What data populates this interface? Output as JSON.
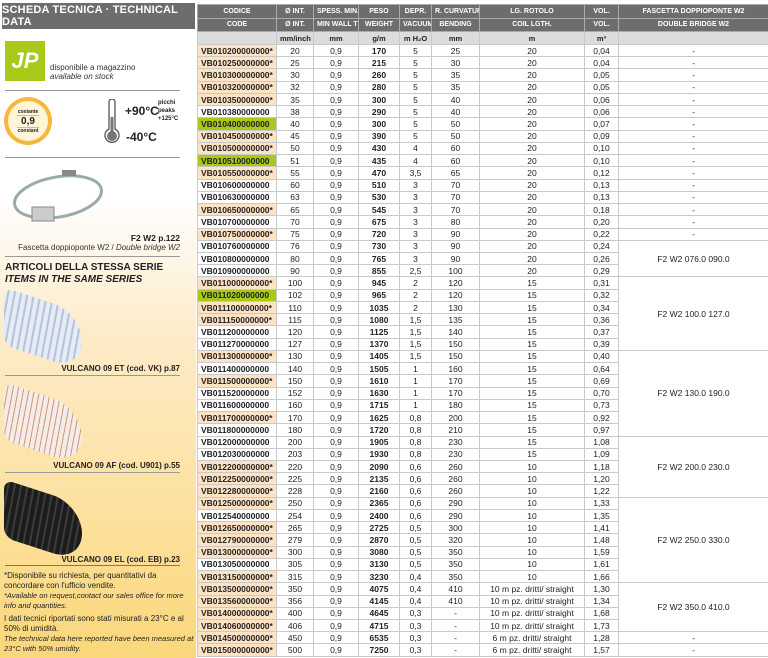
{
  "left": {
    "title": "SCHEDA TECNICA · TECHNICAL DATA",
    "stock_logo": "JP",
    "stock_it": "disponibile a magazzino",
    "stock_en": "available on stock",
    "badge_top": "costante",
    "badge_value": "0,9",
    "badge_bottom": "constant",
    "temp_max": "+90°C",
    "temp_min": "-40°C",
    "peaks_it": "picchi",
    "peaks_en": "peaks",
    "peaks_value": "+125°C",
    "clamp_ref": "F2 W2 p.122",
    "clamp_it": "Fascetta doppioponte W2 / ",
    "clamp_en": "Double bridge W2",
    "series_it": "ARTICOLI DELLA STESSA SERIE",
    "series_en": "ITEMS IN THE SAME SERIES",
    "items": [
      {
        "label": "VULCANO 09 ET (cod. VK) p.87",
        "color": "#dfe6f2"
      },
      {
        "label": "VULCANO 09 AF (cod. U901) p.55",
        "color": "#f0e6e0"
      },
      {
        "label": "VULCANO 09 EL (cod. EB) p.23",
        "color": "#1c1c1c"
      }
    ],
    "note1_it": "*Disponibile su richiesta, per quantitativi da concordare con l'ufficio vendite.",
    "note1_en": "*Available on request,contact our sales office for more info and quantities.",
    "note2_it": "I dati tecnici riportati sono stati misurati a 23°C e al 50% di umidità.",
    "note2_en": "The technical data here reported have been measured at 23°C with 50% umidity."
  },
  "colors": {
    "stock": "#a8c81a",
    "request": "#fde2c4",
    "header": "#6d6d6d"
  },
  "table": {
    "head_it": [
      "CODICE",
      "Ø INT.",
      "SPESS. MIN.",
      "PESO",
      "DEPR.",
      "R. CURVATURA",
      "LG. ROTOLO",
      "VOL.",
      "FASCETTA DOPPIOPONTE W2"
    ],
    "head_en": [
      "CODE",
      "Ø INT.",
      "MIN WALL TH.",
      "WEIGHT",
      "VACUUM",
      "BENDING",
      "COIL LGTH.",
      "VOL.",
      "DOUBLE BRIDGE W2"
    ],
    "units": [
      "",
      "mm/inch",
      "mm",
      "g/m",
      "m H₂O",
      "mm",
      "m",
      "m³",
      ""
    ],
    "rows": [
      [
        "VB010200000000*",
        "20",
        "0,9",
        "170",
        "5",
        "25",
        "20",
        "0,04",
        "-",
        "request"
      ],
      [
        "VB010250000000*",
        "25",
        "0,9",
        "215",
        "5",
        "30",
        "20",
        "0,04",
        "-",
        "request"
      ],
      [
        "VB010300000000*",
        "30",
        "0,9",
        "260",
        "5",
        "35",
        "20",
        "0,05",
        "-",
        "request"
      ],
      [
        "VB010320000000*",
        "32",
        "0,9",
        "280",
        "5",
        "35",
        "20",
        "0,05",
        "-",
        "request"
      ],
      [
        "VB010350000000*",
        "35",
        "0,9",
        "300",
        "5",
        "40",
        "20",
        "0,06",
        "-",
        "request"
      ],
      [
        "VB010380000000",
        "38",
        "0,9",
        "290",
        "5",
        "40",
        "20",
        "0,06",
        "-",
        ""
      ],
      [
        "VB010400000000",
        "40",
        "0,9",
        "300",
        "5",
        "50",
        "20",
        "0,07",
        "-",
        "stock"
      ],
      [
        "VB010450000000*",
        "45",
        "0,9",
        "390",
        "5",
        "50",
        "20",
        "0,09",
        "-",
        "request"
      ],
      [
        "VB010500000000*",
        "50",
        "0,9",
        "430",
        "4",
        "60",
        "20",
        "0,10",
        "-",
        "request"
      ],
      [
        "VB010510000000",
        "51",
        "0,9",
        "435",
        "4",
        "60",
        "20",
        "0,10",
        "-",
        "stock"
      ],
      [
        "VB010550000000*",
        "55",
        "0,9",
        "470",
        "3,5",
        "65",
        "20",
        "0,12",
        "-",
        "request"
      ],
      [
        "VB010600000000",
        "60",
        "0,9",
        "510",
        "3",
        "70",
        "20",
        "0,13",
        "-",
        ""
      ],
      [
        "VB010630000000",
        "63",
        "0,9",
        "530",
        "3",
        "70",
        "20",
        "0,13",
        "-",
        ""
      ],
      [
        "VB010650000000*",
        "65",
        "0,9",
        "545",
        "3",
        "70",
        "20",
        "0,18",
        "-",
        "request"
      ],
      [
        "VB010700000000",
        "70",
        "0,9",
        "675",
        "3",
        "80",
        "20",
        "0,20",
        "-",
        ""
      ],
      [
        "VB010750000000*",
        "75",
        "0,9",
        "720",
        "3",
        "90",
        "20",
        "0,22",
        "-",
        "request"
      ],
      [
        "VB010760000000",
        "76",
        "0,9",
        "730",
        "3",
        "90",
        "20",
        "0,24",
        "F2 W2 076.0 090.0",
        ""
      ],
      [
        "VB010800000000",
        "80",
        "0,9",
        "765",
        "3",
        "90",
        "20",
        "0,26",
        "F2 W2 076.0 090.0",
        ""
      ],
      [
        "VB010900000000",
        "90",
        "0,9",
        "855",
        "2,5",
        "100",
        "20",
        "0,29",
        "F2 W2 076.0 090.0",
        ""
      ],
      [
        "VB011000000000*",
        "100",
        "0,9",
        "945",
        "2",
        "120",
        "15",
        "0,31",
        "F2 W2 100.0 127.0",
        "request"
      ],
      [
        "VB011020000000",
        "102",
        "0,9",
        "965",
        "2",
        "120",
        "15",
        "0,32",
        "F2 W2 100.0 127.0",
        "stock"
      ],
      [
        "VB011100000000*",
        "110",
        "0,9",
        "1035",
        "2",
        "130",
        "15",
        "0,34",
        "F2 W2 100.0 127.0",
        "request"
      ],
      [
        "VB011150000000*",
        "115",
        "0,9",
        "1080",
        "1,5",
        "135",
        "15",
        "0,36",
        "F2 W2 100.0 127.0",
        "request"
      ],
      [
        "VB011200000000",
        "120",
        "0,9",
        "1125",
        "1,5",
        "140",
        "15",
        "0,37",
        "F2 W2 100.0 127.0",
        ""
      ],
      [
        "VB011270000000",
        "127",
        "0,9",
        "1370",
        "1,5",
        "150",
        "15",
        "0,39",
        "F2 W2 100.0 127.0",
        ""
      ],
      [
        "VB011300000000*",
        "130",
        "0,9",
        "1405",
        "1,5",
        "150",
        "15",
        "0,40",
        "F2 W2 130.0 190.0",
        "request"
      ],
      [
        "VB011400000000",
        "140",
        "0,9",
        "1505",
        "1",
        "160",
        "15",
        "0,64",
        "F2 W2 130.0 190.0",
        ""
      ],
      [
        "VB011500000000*",
        "150",
        "0,9",
        "1610",
        "1",
        "170",
        "15",
        "0,69",
        "F2 W2 130.0 190.0",
        "request"
      ],
      [
        "VB011520000000",
        "152",
        "0,9",
        "1630",
        "1",
        "170",
        "15",
        "0,70",
        "F2 W2 130.0 190.0",
        ""
      ],
      [
        "VB011600000000",
        "160",
        "0,9",
        "1715",
        "1",
        "180",
        "15",
        "0,73",
        "F2 W2 130.0 190.0",
        ""
      ],
      [
        "VB011700000000*",
        "170",
        "0,9",
        "1625",
        "0,8",
        "200",
        "15",
        "0,92",
        "F2 W2 130.0 190.0",
        "request"
      ],
      [
        "VB011800000000",
        "180",
        "0,9",
        "1720",
        "0,8",
        "210",
        "15",
        "0,97",
        "F2 W2 130.0 190.0",
        ""
      ],
      [
        "VB012000000000",
        "200",
        "0,9",
        "1905",
        "0,8",
        "230",
        "15",
        "1,08",
        "F2 W2 200.0 230.0",
        ""
      ],
      [
        "VB012030000000",
        "203",
        "0,9",
        "1930",
        "0,8",
        "230",
        "15",
        "1,09",
        "F2 W2 200.0 230.0",
        ""
      ],
      [
        "VB012200000000*",
        "220",
        "0,9",
        "2090",
        "0,6",
        "260",
        "10",
        "1,18",
        "F2 W2 200.0 230.0",
        "request"
      ],
      [
        "VB012250000000*",
        "225",
        "0,9",
        "2135",
        "0,6",
        "260",
        "10",
        "1,20",
        "F2 W2 200.0 230.0",
        "request"
      ],
      [
        "VB012280000000*",
        "228",
        "0,9",
        "2160",
        "0,6",
        "260",
        "10",
        "1,22",
        "F2 W2 200.0 230.0",
        "request"
      ],
      [
        "VB012500000000*",
        "250",
        "0,9",
        "2365",
        "0,6",
        "290",
        "10",
        "1,33",
        "F2 W2 250.0 330.0",
        "request"
      ],
      [
        "VB012540000000",
        "254",
        "0,9",
        "2400",
        "0,6",
        "290",
        "10",
        "1,35",
        "F2 W2 250.0 330.0",
        ""
      ],
      [
        "VB012650000000*",
        "265",
        "0,9",
        "2725",
        "0,5",
        "300",
        "10",
        "1,41",
        "F2 W2 250.0 330.0",
        "request"
      ],
      [
        "VB012790000000*",
        "279",
        "0,9",
        "2870",
        "0,5",
        "320",
        "10",
        "1,48",
        "F2 W2 250.0 330.0",
        "request"
      ],
      [
        "VB013000000000*",
        "300",
        "0,9",
        "3080",
        "0,5",
        "350",
        "10",
        "1,59",
        "F2 W2 250.0 330.0",
        "request"
      ],
      [
        "VB013050000000",
        "305",
        "0,9",
        "3130",
        "0,5",
        "350",
        "10",
        "1,61",
        "F2 W2 250.0 330.0",
        ""
      ],
      [
        "VB013150000000*",
        "315",
        "0,9",
        "3230",
        "0,4",
        "350",
        "10",
        "1,66",
        "F2 W2 250.0 330.0",
        "request"
      ],
      [
        "VB013500000000*",
        "350",
        "0,9",
        "4075",
        "0,4",
        "410",
        "10 m pz. dritti/ straight",
        "1,30",
        "F2 W2 350.0 410.0",
        "request"
      ],
      [
        "VB013560000000*",
        "356",
        "0,9",
        "4145",
        "0,4",
        "410",
        "10 m pz. dritti/ straight",
        "1,34",
        "F2 W2 350.0 410.0",
        "request"
      ],
      [
        "VB014000000000*",
        "400",
        "0,9",
        "4645",
        "0,3",
        "-",
        "10 m pz. dritti/ straight",
        "1,68",
        "F2 W2 350.0 410.0",
        "request"
      ],
      [
        "VB014060000000*",
        "406",
        "0,9",
        "4715",
        "0,3",
        "-",
        "10 m pz. dritti/ straight",
        "1,73",
        "F2 W2 350.0 410.0",
        "request"
      ],
      [
        "VB014500000000*",
        "450",
        "0,9",
        "6535",
        "0,3",
        "-",
        "6 m pz. dritti/ straight",
        "1,28",
        "-",
        "request"
      ],
      [
        "VB015000000000*",
        "500",
        "0,9",
        "7250",
        "0,3",
        "-",
        "6 m pz. dritti/ straight",
        "1,57",
        "-",
        "request"
      ]
    ]
  }
}
